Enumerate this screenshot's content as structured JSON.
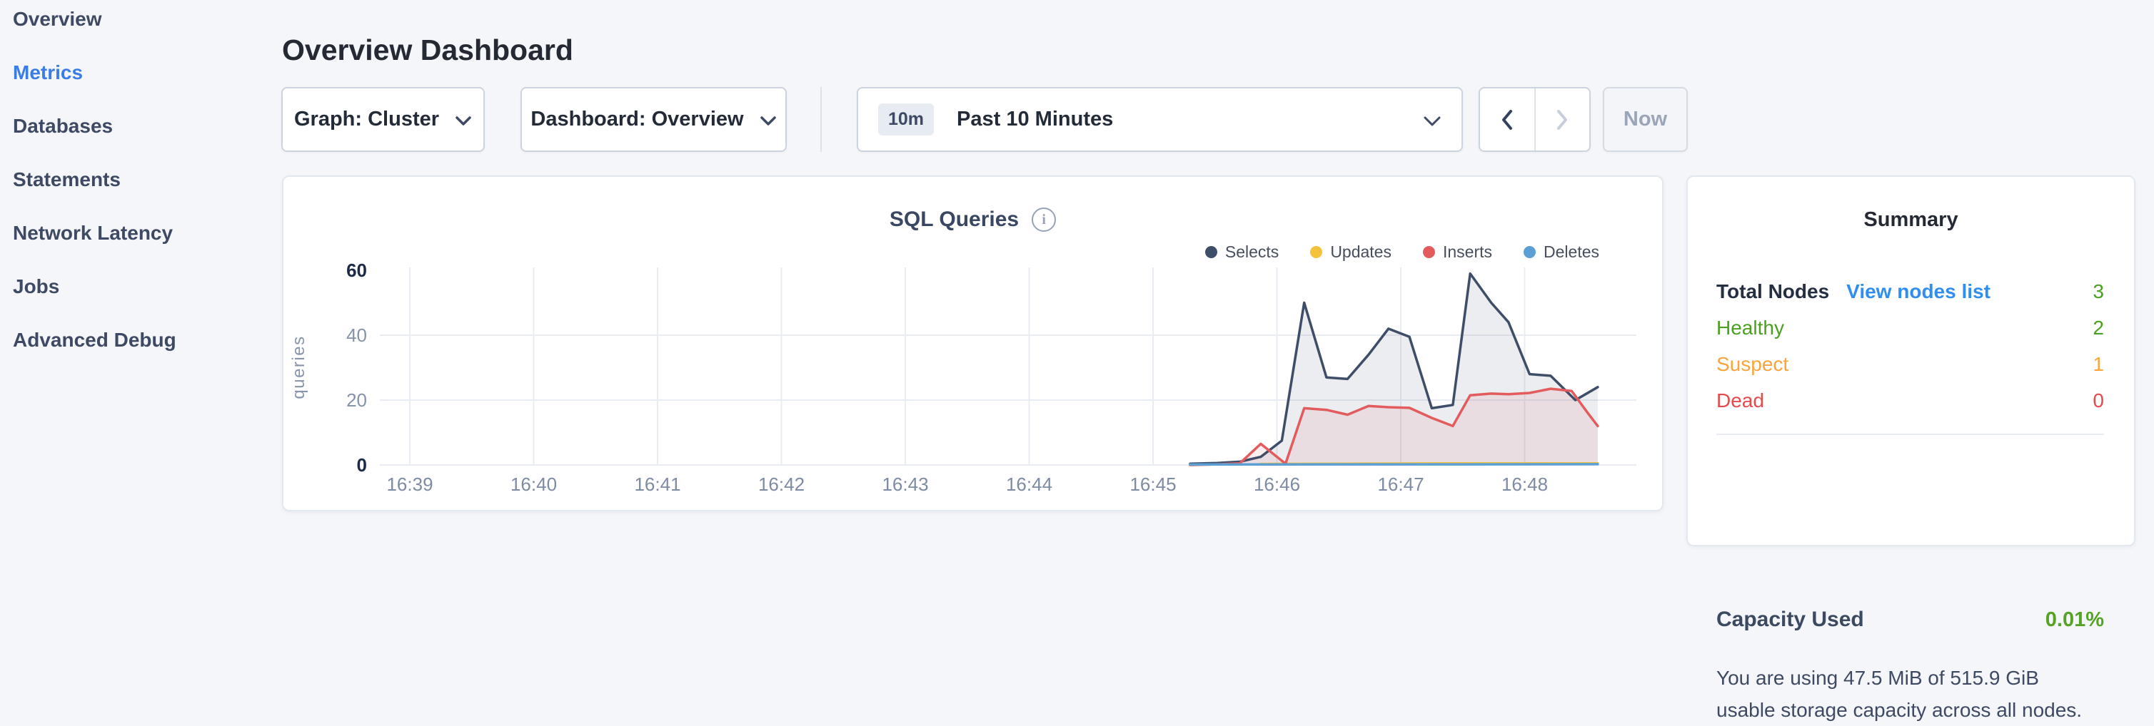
{
  "sidebar": {
    "items": [
      {
        "label": "Overview",
        "active": false
      },
      {
        "label": "Metrics",
        "active": true
      },
      {
        "label": "Databases",
        "active": false
      },
      {
        "label": "Statements",
        "active": false
      },
      {
        "label": "Network Latency",
        "active": false
      },
      {
        "label": "Jobs",
        "active": false
      },
      {
        "label": "Advanced Debug",
        "active": false
      }
    ]
  },
  "header": {
    "title": "Overview Dashboard"
  },
  "toolbar": {
    "graph_dropdown": {
      "label": "Graph: Cluster"
    },
    "dashboard_dropdown": {
      "label": "Dashboard: Overview"
    },
    "time_selector": {
      "badge": "10m",
      "label": "Past 10 Minutes"
    },
    "now_button_label": "Now"
  },
  "chart_card": {
    "title": "SQL Queries"
  },
  "chart_data": {
    "type": "area",
    "title": "SQL Queries",
    "ylabel": "queries",
    "xlabel": "",
    "x_tick_labels": [
      "16:39",
      "16:40",
      "16:41",
      "16:42",
      "16:43",
      "16:44",
      "16:45",
      "16:46",
      "16:47",
      "16:48"
    ],
    "x_tick_interval": "1 minute",
    "y_ticks": [
      0,
      20,
      40,
      60
    ],
    "ylim": [
      0,
      60
    ],
    "grid": true,
    "legend_position": "top-right",
    "series_x_unit": "minutes_after_16:45",
    "series": [
      {
        "name": "Selects",
        "color": "#3f4e68",
        "fill_opacity": 0.1,
        "points": [
          [
            0.3,
            0.4
          ],
          [
            0.52,
            0.6
          ],
          [
            0.7,
            1.0
          ],
          [
            0.87,
            2.5
          ],
          [
            1.04,
            7.5
          ],
          [
            1.22,
            50
          ],
          [
            1.4,
            27
          ],
          [
            1.57,
            26.5
          ],
          [
            1.74,
            34
          ],
          [
            1.9,
            42
          ],
          [
            2.07,
            39.5
          ],
          [
            2.25,
            17.5
          ],
          [
            2.42,
            18.5
          ],
          [
            2.56,
            59
          ],
          [
            2.73,
            50
          ],
          [
            2.87,
            44
          ],
          [
            3.04,
            28
          ],
          [
            3.21,
            27.5
          ],
          [
            3.41,
            20
          ],
          [
            3.59,
            24
          ]
        ]
      },
      {
        "name": "Updates",
        "color": "#f5c33b",
        "fill_opacity": 0.25,
        "points": [
          [
            0.87,
            0.3
          ],
          [
            1.5,
            0.4
          ],
          [
            2.5,
            0.5
          ],
          [
            3.59,
            0.5
          ]
        ]
      },
      {
        "name": "Inserts",
        "color": "#e25c5e",
        "fill_opacity": 0.1,
        "points": [
          [
            0.3,
            0.0
          ],
          [
            0.52,
            0.2
          ],
          [
            0.7,
            0.5
          ],
          [
            0.87,
            6.5
          ],
          [
            1.07,
            0.4
          ],
          [
            1.22,
            17.5
          ],
          [
            1.4,
            17
          ],
          [
            1.57,
            15.5
          ],
          [
            1.74,
            18.2
          ],
          [
            1.9,
            17.8
          ],
          [
            2.07,
            17.6
          ],
          [
            2.25,
            14.5
          ],
          [
            2.42,
            12
          ],
          [
            2.56,
            21.5
          ],
          [
            2.73,
            22
          ],
          [
            2.87,
            21.8
          ],
          [
            3.04,
            22.2
          ],
          [
            3.21,
            23.5
          ],
          [
            3.38,
            22.8
          ],
          [
            3.51,
            16
          ],
          [
            3.59,
            12
          ]
        ]
      },
      {
        "name": "Deletes",
        "color": "#5b9fd4",
        "fill_opacity": 0.12,
        "points": [
          [
            0.3,
            0.15
          ],
          [
            1.5,
            0.2
          ],
          [
            2.5,
            0.2
          ],
          [
            3.59,
            0.25
          ]
        ]
      }
    ]
  },
  "summary": {
    "title": "Summary",
    "rows": [
      {
        "label": "Total Nodes",
        "link": "View nodes list",
        "value": "3",
        "color": "#4ca021",
        "label_color": "#242f42"
      },
      {
        "label": "Healthy",
        "value": "2",
        "color": "#4ca021"
      },
      {
        "label": "Suspect",
        "value": "1",
        "color": "#f9a43c"
      },
      {
        "label": "Dead",
        "value": "0",
        "color": "#e8494c"
      }
    ],
    "capacity": {
      "label": "Capacity Used",
      "value": "0.01%",
      "value_color": "#54a326",
      "description": "You are using 47.5 MiB of 515.9 GiB usable storage capacity across all nodes."
    }
  }
}
